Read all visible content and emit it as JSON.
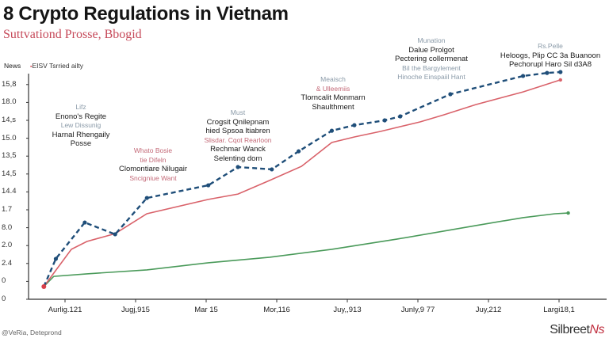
{
  "header": {
    "title": "8 Crypto Regulations in Vietnam",
    "subtitle": "Suttvationd Prosse, Bbogid"
  },
  "news_label": "News",
  "legend": {
    "marker": "▪",
    "label": "EISV Tsrried ailty"
  },
  "footer": {
    "credit": "@VeRia, Deteprond",
    "logo": "Silbreet",
    "logo_mark": "Ns"
  },
  "colors": {
    "blue_dashed": "#1f4e79",
    "red": "#d9626a",
    "green": "#4a9a5a",
    "axis": "#333333"
  },
  "chart_data": {
    "type": "line",
    "title": "8 Crypto Regulations in Vietnam",
    "subtitle": "Suttvationd Prosse, Bbogid",
    "y_tick_labels": [
      "0",
      "0",
      "2.4",
      "2.0",
      "8.0",
      "1.7",
      "14.4",
      "14,5",
      "13,5",
      "15.0",
      "14,s",
      "18.0",
      "15,8"
    ],
    "x_tick_labels": [
      "Aurlig.121",
      "Jugj,915",
      "Mar 15",
      "Mor,116",
      "Juy,,913",
      "Junly,9 77",
      "Juy,212",
      "Largi18,1"
    ],
    "x_units": "category index (tick labels)",
    "y_units": "y tick index",
    "xlim": [
      -0.5,
      7.6
    ],
    "ylim": [
      0,
      12.9
    ],
    "grid": false,
    "legend_position": "top-left",
    "series": [
      {
        "style": "dashed-markers",
        "color": "#1f4e79",
        "x": [
          -0.3,
          -0.13,
          0.28,
          0.71,
          1.16,
          2.03,
          2.45,
          2.93,
          3.31,
          3.78,
          4.1,
          4.53,
          4.75,
          5.46,
          6.49,
          6.83,
          7.02
        ],
        "y": [
          0.71,
          2.26,
          4.29,
          3.63,
          5.66,
          6.37,
          7.39,
          7.26,
          8.27,
          9.42,
          9.73,
          10.0,
          10.22,
          11.46,
          12.48,
          12.65,
          12.7
        ]
      },
      {
        "name": "EISV Tsrried ailty",
        "style": "solid",
        "color": "#d9626a",
        "x": [
          -0.3,
          -0.16,
          0.09,
          0.31,
          0.71,
          1.16,
          2.03,
          2.45,
          2.9,
          3.35,
          3.78,
          4.1,
          4.47,
          5.03,
          5.37,
          5.82,
          6.49,
          7.02
        ],
        "y": [
          0.71,
          1.46,
          2.79,
          3.23,
          3.67,
          4.78,
          5.58,
          5.88,
          6.64,
          7.43,
          8.76,
          9.07,
          9.38,
          9.91,
          10.31,
          10.88,
          11.59,
          12.26
        ]
      },
      {
        "style": "solid",
        "color": "#4a9a5a",
        "x": [
          -0.3,
          -0.16,
          0.31,
          1.16,
          2.03,
          2.9,
          3.78,
          4.7,
          5.82,
          6.49,
          6.94,
          7.13
        ],
        "y": [
          0.71,
          1.28,
          1.42,
          1.64,
          2.04,
          2.35,
          2.79,
          3.36,
          4.12,
          4.56,
          4.78,
          4.82
        ]
      }
    ],
    "annotations": [
      {
        "lines": [
          {
            "t": "Lifz",
            "c": "g"
          },
          {
            "t": "Enono's Regite",
            "c": "k"
          },
          {
            "t": "Lew Dissunig",
            "c": "g"
          },
          {
            "t": "Harnal Rhengaily",
            "c": "k"
          },
          {
            "t": "Posse",
            "c": "k"
          }
        ]
      },
      {
        "lines": [
          {
            "t": "Whato Bosie",
            "c": "p"
          },
          {
            "t": "tie Difeln",
            "c": "p"
          },
          {
            "t": "Clomontiare Nilugair",
            "c": "k"
          },
          {
            "t": "Sncigniue Want",
            "c": "p"
          }
        ]
      },
      {
        "lines": [
          {
            "t": "Must",
            "c": "g"
          },
          {
            "t": "Crogsit Qnilepnam",
            "c": "k"
          },
          {
            "t": "hied Spsoa ltiabren",
            "c": "k"
          },
          {
            "t": "Slisdar. Cqot Rearloon",
            "c": "p"
          },
          {
            "t": "Rechmar Wanck",
            "c": "k"
          },
          {
            "t": "Selenting dom",
            "c": "k"
          }
        ]
      },
      {
        "lines": [
          {
            "t": "Meaisch",
            "c": "g"
          },
          {
            "t": "& Ulleemiis",
            "c": "p"
          },
          {
            "t": "Tlorncalit Monmarn",
            "c": "k"
          },
          {
            "t": "Shaulthment",
            "c": "k"
          }
        ]
      },
      {
        "lines": [
          {
            "t": "Munation",
            "c": "g"
          },
          {
            "t": "Dalue Prolgot",
            "c": "k"
          },
          {
            "t": "Pectering collermenat",
            "c": "k"
          },
          {
            "t": "Bil the Bargylement",
            "c": "g"
          },
          {
            "t": "Hinoche Einspaiil Hant",
            "c": "g"
          }
        ]
      },
      {
        "lines": [
          {
            "t": "Rs.Pelle",
            "c": "g"
          },
          {
            "t": "Heloogs, Plip CC 3a Buanoon",
            "c": "k"
          },
          {
            "t": "Pechorupl Haro Sil d3A8",
            "c": "k"
          }
        ]
      }
    ]
  }
}
